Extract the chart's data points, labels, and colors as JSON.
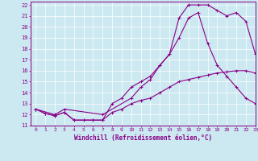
{
  "title": "",
  "xlabel": "Windchill (Refroidissement éolien,°C)",
  "ylabel": "",
  "bg_color": "#cce8f0",
  "line_color": "#880088",
  "xlim": [
    -0.5,
    23
  ],
  "ylim": [
    11,
    22.3
  ],
  "xticks": [
    0,
    1,
    2,
    3,
    4,
    5,
    6,
    7,
    8,
    9,
    10,
    11,
    12,
    13,
    14,
    15,
    16,
    17,
    18,
    19,
    20,
    21,
    22,
    23
  ],
  "yticks": [
    11,
    12,
    13,
    14,
    15,
    16,
    17,
    18,
    19,
    20,
    21,
    22
  ],
  "line1_x": [
    0,
    1,
    2,
    3,
    4,
    5,
    6,
    7,
    8,
    9,
    10,
    11,
    12,
    13,
    14,
    15,
    16,
    17,
    18,
    19,
    20,
    21,
    22,
    23
  ],
  "line1_y": [
    12.5,
    12.1,
    11.9,
    12.2,
    11.5,
    11.5,
    11.5,
    11.5,
    12.2,
    12.5,
    13.0,
    13.3,
    13.5,
    14.0,
    14.5,
    15.0,
    15.2,
    15.4,
    15.6,
    15.8,
    15.9,
    16.0,
    16.0,
    15.8
  ],
  "line2_x": [
    0,
    1,
    2,
    3,
    4,
    5,
    6,
    7,
    8,
    9,
    10,
    11,
    12,
    13,
    14,
    15,
    16,
    17,
    18,
    19,
    20,
    21,
    22,
    23
  ],
  "line2_y": [
    12.5,
    12.1,
    11.9,
    12.2,
    11.5,
    11.5,
    11.5,
    11.5,
    13.0,
    13.5,
    14.5,
    15.0,
    15.5,
    16.5,
    17.5,
    19.0,
    20.8,
    21.3,
    18.5,
    16.5,
    15.5,
    14.5,
    13.5,
    13.0
  ],
  "line3_x": [
    0,
    2,
    3,
    7,
    10,
    11,
    12,
    13,
    14,
    15,
    16,
    16,
    17,
    18,
    19,
    20,
    21,
    22,
    23
  ],
  "line3_y": [
    12.5,
    12.0,
    12.5,
    12.0,
    13.5,
    14.5,
    15.2,
    16.5,
    17.5,
    20.8,
    22.0,
    22.0,
    22.0,
    22.0,
    21.5,
    21.0,
    21.3,
    20.5,
    17.5
  ]
}
